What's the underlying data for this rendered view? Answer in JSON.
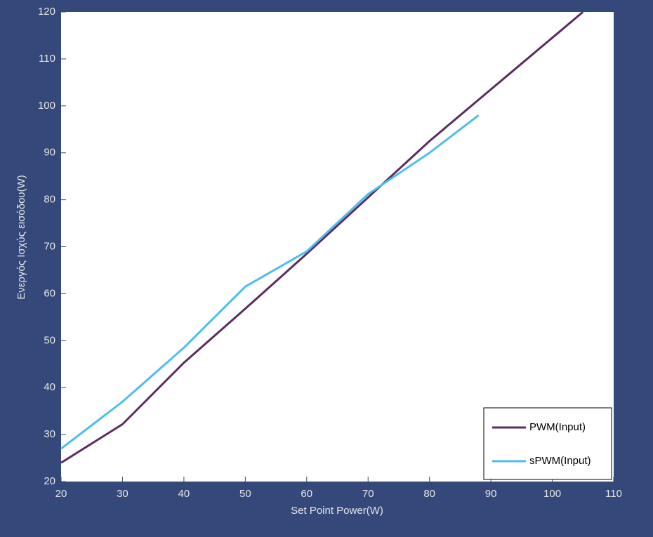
{
  "chart_data": {
    "type": "line",
    "xlabel": "Set Point Power(W)",
    "ylabel": "Ενεργός Ισχύς εισόδου(W)",
    "xlim": [
      20,
      110
    ],
    "ylim": [
      20,
      120
    ],
    "xticks": [
      20,
      30,
      40,
      50,
      60,
      70,
      80,
      90,
      100,
      110
    ],
    "yticks": [
      20,
      30,
      40,
      50,
      60,
      70,
      80,
      90,
      100,
      110,
      120
    ],
    "legend": "lower right",
    "series": [
      {
        "name": "PWM(Input)",
        "color": "#5b2c5f",
        "x": [
          20,
          30,
          40,
          50,
          60,
          70,
          80,
          90,
          100,
          105
        ],
        "values": [
          24,
          32.2,
          45.3,
          56.8,
          68.5,
          80.5,
          92.5,
          103.5,
          114.5,
          120
        ]
      },
      {
        "name": "sPWM(Input)",
        "color": "#4dbeee",
        "x": [
          20,
          30,
          40,
          50,
          60,
          70,
          80,
          88
        ],
        "values": [
          27,
          37,
          48.5,
          61.5,
          69,
          81.2,
          90,
          98
        ]
      }
    ]
  }
}
